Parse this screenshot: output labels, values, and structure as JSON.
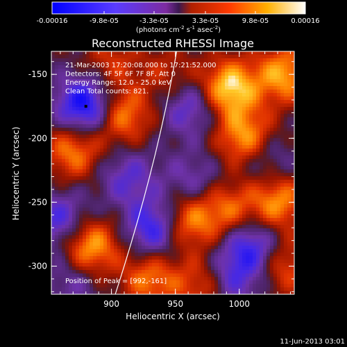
{
  "chart_data": {
    "type": "heatmap",
    "title": "Reconstructed RHESSI Image",
    "xlabel": "Heliocentric X (arcsec)",
    "ylabel": "Heliocentric Y (arcsec)",
    "xlim": [
      853,
      1043
    ],
    "ylim": [
      -322,
      -132
    ],
    "x_ticks": [
      900,
      950,
      1000
    ],
    "y_ticks": [
      -150,
      -200,
      -250,
      -300
    ],
    "colorbar": {
      "ticks": [
        "-0.00016",
        "-9.8e-05",
        "-3.3e-05",
        "3.3e-05",
        "9.8e-05",
        "0.00016"
      ],
      "label": "(photons cm",
      "label_sup1": "-2",
      "label_mid": " s",
      "label_sup2": "-1",
      "label_end": " asec",
      "label_sup3": "-2",
      "label_close": ")",
      "range": [
        -0.00016,
        0.00016
      ]
    },
    "info_lines": [
      "21-Mar-2003 17:20:08.000 to 17:21:52.000",
      "Detectors: 4F 5F 6F 7F 8F, Att 0",
      "Energy Range: 12.0 - 25.0 keV",
      "Clean    Total counts: 821."
    ],
    "peak_text": "Position of Peak = [992,-161]",
    "peak": [
      992,
      -161
    ],
    "limb_arc": [
      [
        903,
        -322
      ],
      [
        936,
        -220
      ],
      [
        951,
        -132
      ]
    ],
    "blobs": [
      {
        "x": 880,
        "y": -175,
        "v": -1.0
      },
      {
        "x": 935,
        "y": -270,
        "v": -0.85
      },
      {
        "x": 1010,
        "y": -285,
        "v": -0.7
      },
      {
        "x": 860,
        "y": -265,
        "v": -0.6
      },
      {
        "x": 962,
        "y": -175,
        "v": -0.55
      },
      {
        "x": 912,
        "y": -230,
        "v": -0.45
      },
      {
        "x": 1020,
        "y": -215,
        "v": -0.4
      },
      {
        "x": 995,
        "y": -310,
        "v": -0.5
      },
      {
        "x": 870,
        "y": -310,
        "v": -0.35
      },
      {
        "x": 965,
        "y": -235,
        "v": -0.4
      },
      {
        "x": 992,
        "y": -161,
        "v": 1.0
      },
      {
        "x": 1035,
        "y": -150,
        "v": 0.8
      },
      {
        "x": 1005,
        "y": -200,
        "v": 0.85
      },
      {
        "x": 908,
        "y": -182,
        "v": 0.75
      },
      {
        "x": 870,
        "y": -210,
        "v": 0.7
      },
      {
        "x": 883,
        "y": -285,
        "v": 0.9
      },
      {
        "x": 958,
        "y": -265,
        "v": 0.8
      },
      {
        "x": 930,
        "y": -310,
        "v": 0.65
      },
      {
        "x": 1030,
        "y": -250,
        "v": 0.75
      },
      {
        "x": 990,
        "y": -255,
        "v": 0.6
      },
      {
        "x": 900,
        "y": -140,
        "v": 0.4
      },
      {
        "x": 1035,
        "y": -300,
        "v": 0.55
      },
      {
        "x": 945,
        "y": -150,
        "v": 0.35
      },
      {
        "x": 970,
        "y": -315,
        "v": 0.5
      }
    ]
  },
  "footer": {
    "date": "11-Jun-2013 03:01"
  }
}
